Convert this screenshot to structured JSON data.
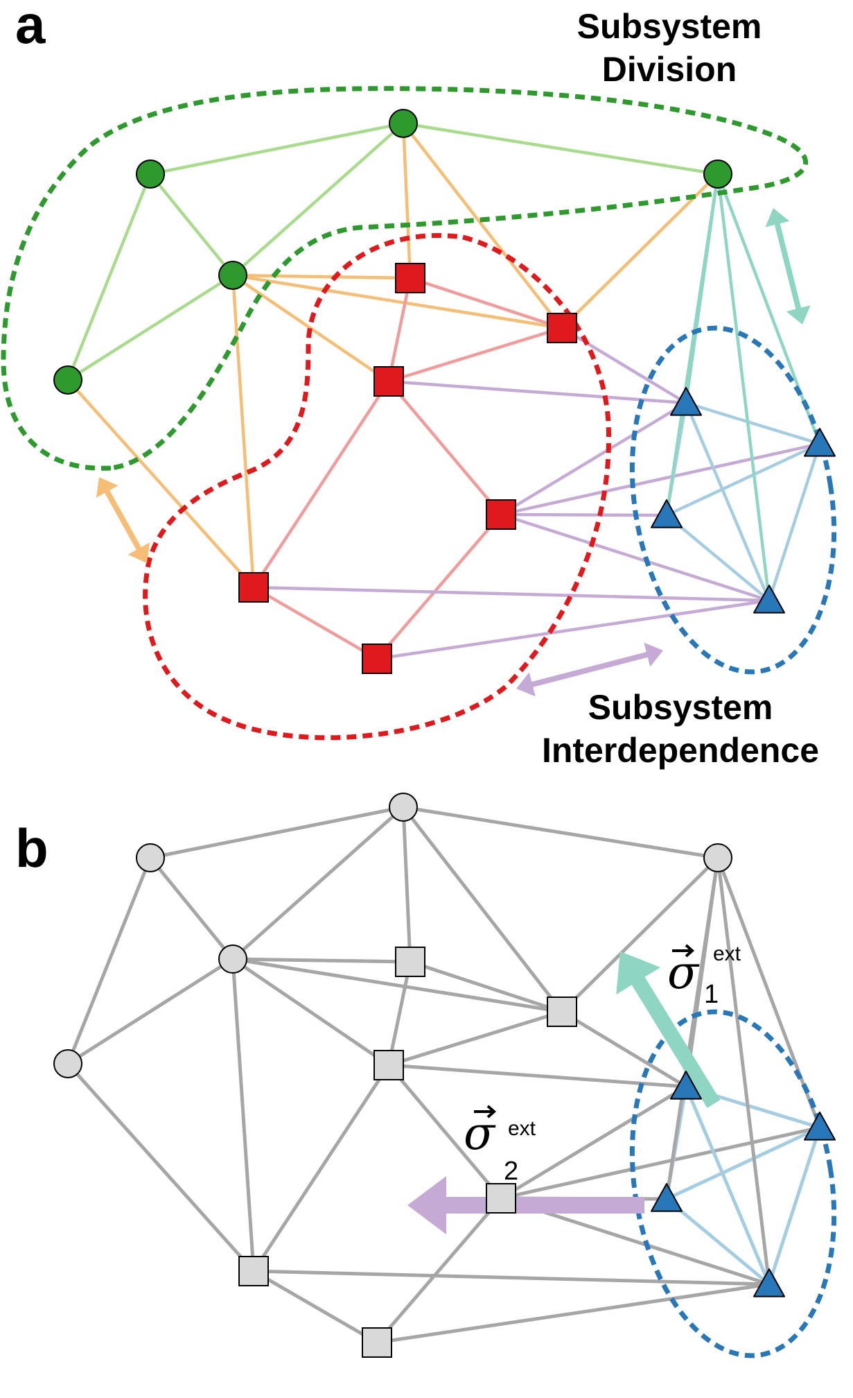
{
  "panel_a": {
    "letter": "a",
    "caption_division": [
      "Subsystem",
      "Division"
    ],
    "caption_interdependence": [
      "Subsystem",
      "Interdependence"
    ]
  },
  "panel_b": {
    "letter": "b",
    "sigma_1": {
      "symbol": "σ",
      "superscript": "ext",
      "subscript": "1"
    },
    "sigma_2": {
      "symbol": "σ",
      "superscript": "ext",
      "subscript": "2"
    }
  },
  "colors": {
    "green_node": "#2e9a2e",
    "red_node": "#e0191c",
    "blue_node": "#2877b8",
    "gray_node": "#d9d9d9",
    "green_edge": "#a8dc8c",
    "orange_edge": "#f6bd74",
    "red_edge": "#f19b9b",
    "purple_edge": "#c6aad6",
    "blue_edge": "#a5cde2",
    "teal_edge": "#8fd5c4",
    "gray_edge": "#a6a6a6",
    "green_boundary": "#2e9a2e",
    "red_boundary": "#e0191c",
    "blue_boundary": "#2877b8",
    "orange_arrow": "#f6bd74",
    "teal_arrow": "#8fd5c4",
    "purple_arrow": "#c6aad6"
  }
}
